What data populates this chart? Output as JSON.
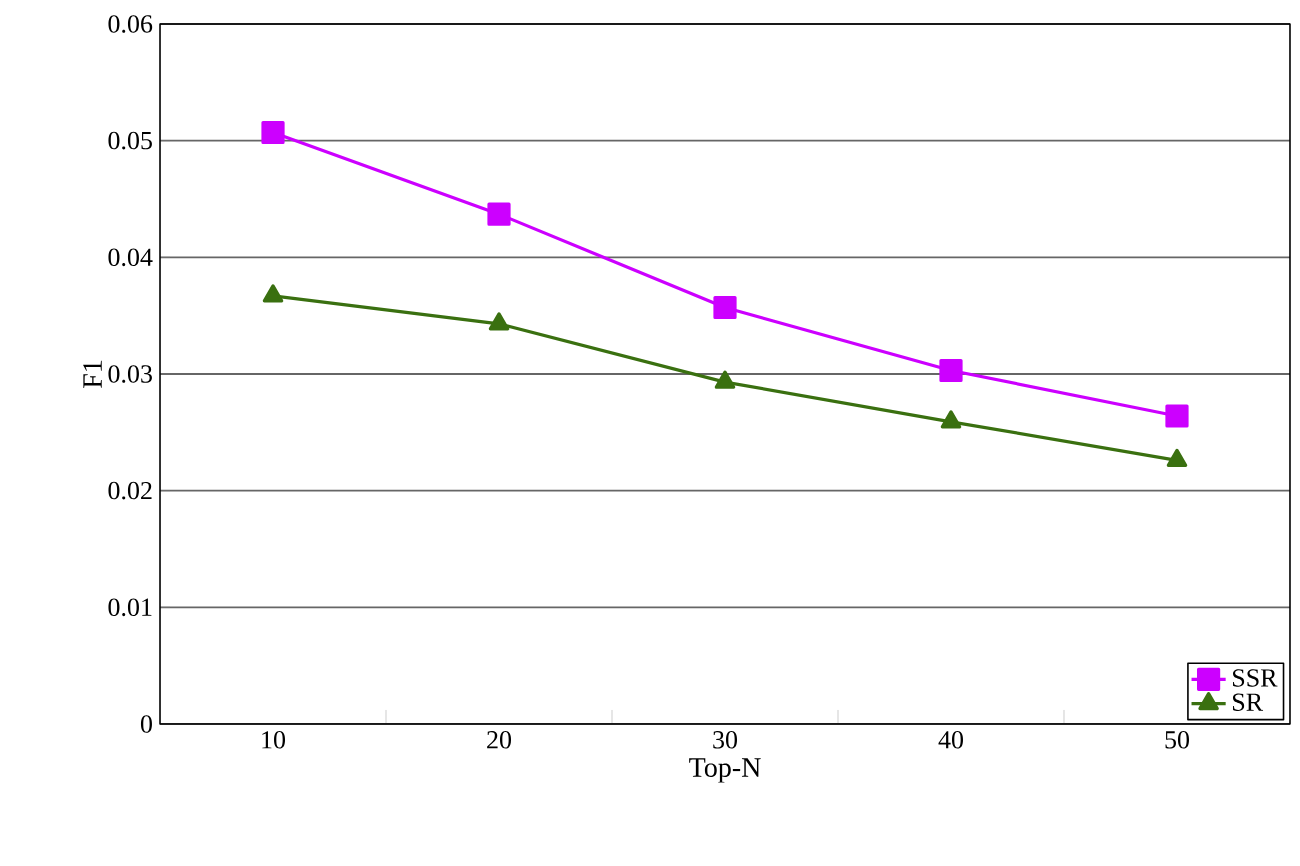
{
  "chart_data": {
    "type": "line",
    "xlabel": "Top-N",
    "ylabel": "F1",
    "categories": [
      "10",
      "20",
      "30",
      "40",
      "50"
    ],
    "series": [
      {
        "name": "SSR",
        "color": "#cc00ff",
        "marker": "square",
        "values": [
          0.0507,
          0.0437,
          0.0357,
          0.0303,
          0.0264
        ]
      },
      {
        "name": "SR",
        "color": "#3a7010",
        "marker": "triangle",
        "values": [
          0.0367,
          0.0343,
          0.0293,
          0.0259,
          0.0226
        ]
      }
    ],
    "ylim": [
      0,
      0.06
    ],
    "yticks": [
      0,
      0.01,
      0.02,
      0.03,
      0.04,
      0.05,
      0.06
    ],
    "grid": "y",
    "legend": "bottom right"
  }
}
